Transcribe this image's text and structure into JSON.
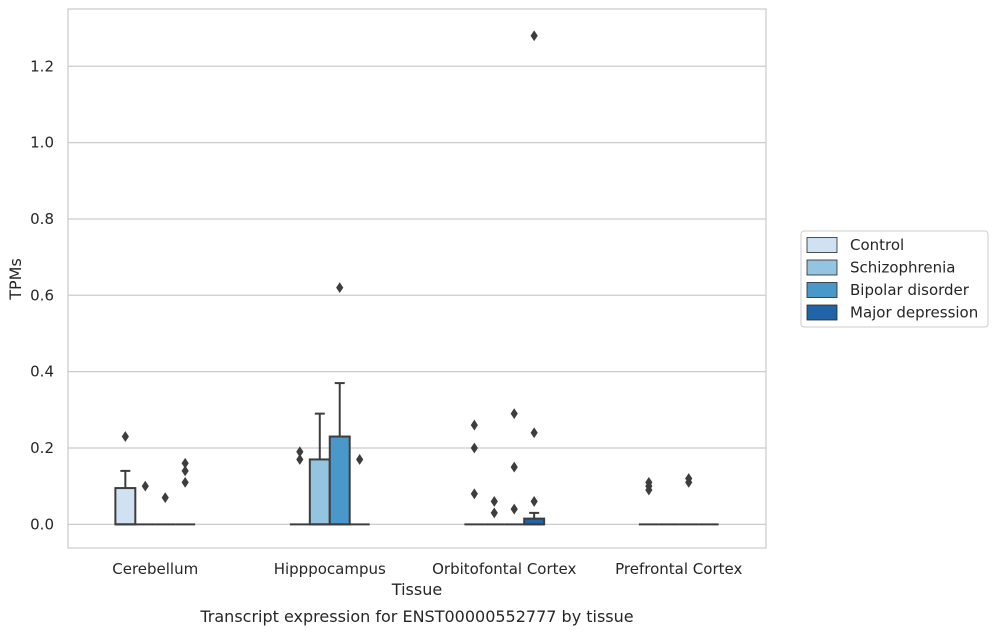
{
  "chart_data": {
    "type": "box",
    "title": "",
    "caption": "Transcript expression for ENST00000552777 by tissue",
    "xlabel": "Tissue",
    "ylabel": "TPMs",
    "ylim": [
      -0.062,
      1.35
    ],
    "yticks": [
      0.0,
      0.2,
      0.4,
      0.6,
      0.8,
      1.0,
      1.2
    ],
    "ytick_labels": [
      "0.0",
      "0.2",
      "0.4",
      "0.6",
      "0.8",
      "1.0",
      "1.2"
    ],
    "grid": "horizontal",
    "legend_position": "right",
    "categories": [
      "Cerebellum",
      "Hipppocampus",
      "Orbitofontal Cortex",
      "Prefrontal Cortex"
    ],
    "series": [
      {
        "name": "Control",
        "color": "#d0e1f2",
        "boxes": [
          {
            "q1": 0.0,
            "median": 0.0,
            "q3": 0.095,
            "whisker_low": 0.0,
            "whisker_high": 0.14,
            "outliers": [
              0.23
            ]
          },
          {
            "q1": 0.0,
            "median": 0.0,
            "q3": 0.0,
            "whisker_low": 0.0,
            "whisker_high": 0.0,
            "outliers": [
              0.17,
              0.19
            ]
          },
          {
            "q1": 0.0,
            "median": 0.0,
            "q3": 0.0,
            "whisker_low": 0.0,
            "whisker_high": 0.0,
            "outliers": [
              0.08,
              0.2,
              0.26
            ]
          },
          {
            "q1": 0.0,
            "median": 0.0,
            "q3": 0.0,
            "whisker_low": 0.0,
            "whisker_high": 0.0,
            "outliers": [
              0.09,
              0.1,
              0.11
            ]
          }
        ]
      },
      {
        "name": "Schizophrenia",
        "color": "#94c4df",
        "boxes": [
          {
            "q1": 0.0,
            "median": 0.0,
            "q3": 0.0,
            "whisker_low": 0.0,
            "whisker_high": 0.0,
            "outliers": [
              0.1
            ]
          },
          {
            "q1": 0.0,
            "median": 0.0,
            "q3": 0.17,
            "whisker_low": 0.0,
            "whisker_high": 0.29,
            "outliers": []
          },
          {
            "q1": 0.0,
            "median": 0.0,
            "q3": 0.0,
            "whisker_low": 0.0,
            "whisker_high": 0.0,
            "outliers": [
              0.03,
              0.06
            ]
          },
          {
            "q1": 0.0,
            "median": 0.0,
            "q3": 0.0,
            "whisker_low": 0.0,
            "whisker_high": 0.0,
            "outliers": []
          }
        ]
      },
      {
        "name": "Bipolar disorder",
        "color": "#4a98c9",
        "boxes": [
          {
            "q1": 0.0,
            "median": 0.0,
            "q3": 0.0,
            "whisker_low": 0.0,
            "whisker_high": 0.0,
            "outliers": [
              0.07
            ]
          },
          {
            "q1": 0.0,
            "median": 0.0,
            "q3": 0.23,
            "whisker_low": 0.0,
            "whisker_high": 0.37,
            "outliers": [
              0.62
            ]
          },
          {
            "q1": 0.0,
            "median": 0.0,
            "q3": 0.0,
            "whisker_low": 0.0,
            "whisker_high": 0.0,
            "outliers": [
              0.04,
              0.15,
              0.29
            ]
          },
          {
            "q1": 0.0,
            "median": 0.0,
            "q3": 0.0,
            "whisker_low": 0.0,
            "whisker_high": 0.0,
            "outliers": [
              0.11,
              0.12
            ]
          }
        ]
      },
      {
        "name": "Major depression",
        "color": "#2164a8",
        "boxes": [
          {
            "q1": 0.0,
            "median": 0.0,
            "q3": 0.0,
            "whisker_low": 0.0,
            "whisker_high": 0.0,
            "outliers": [
              0.11,
              0.14,
              0.16
            ]
          },
          {
            "q1": 0.0,
            "median": 0.0,
            "q3": 0.0,
            "whisker_low": 0.0,
            "whisker_high": 0.0,
            "outliers": [
              0.17
            ]
          },
          {
            "q1": 0.0,
            "median": 0.0,
            "q3": 0.015,
            "whisker_low": 0.0,
            "whisker_high": 0.03,
            "outliers": [
              0.06,
              0.24,
              1.28
            ]
          },
          {
            "q1": 0.0,
            "median": 0.0,
            "q3": 0.0,
            "whisker_low": 0.0,
            "whisker_high": 0.0,
            "outliers": []
          }
        ]
      }
    ]
  }
}
